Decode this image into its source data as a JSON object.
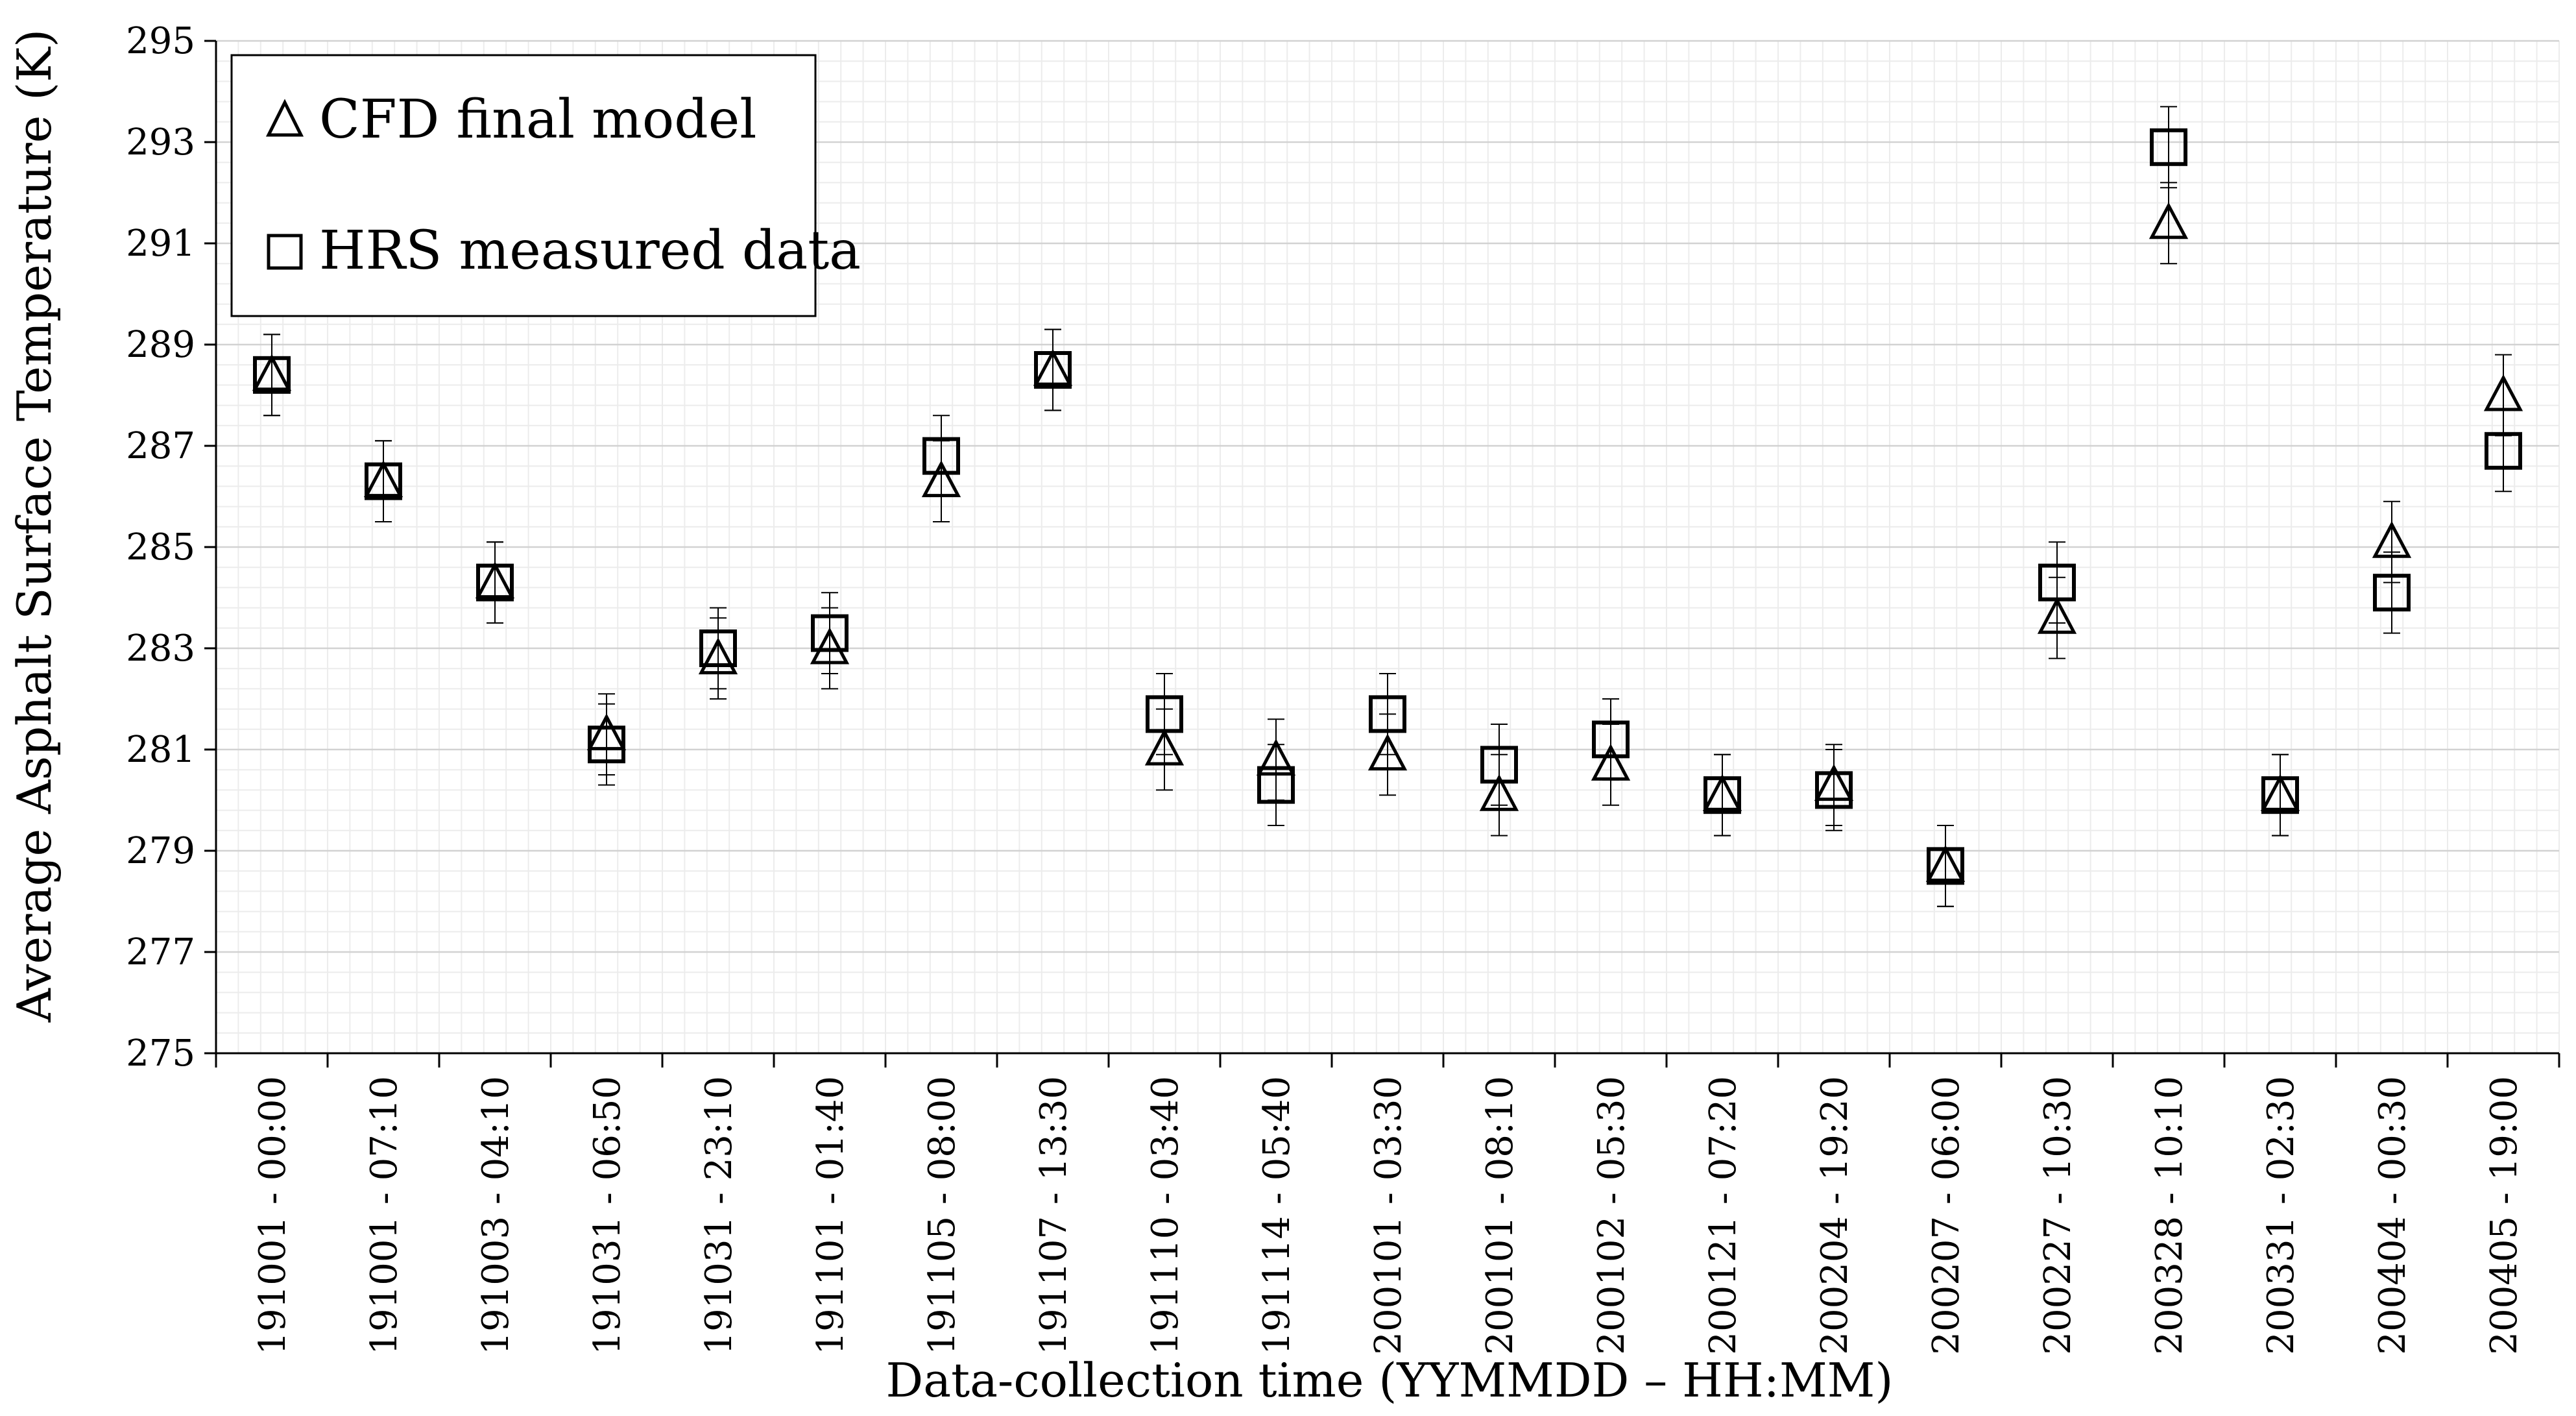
{
  "chart_data": {
    "type": "scatter",
    "title": "",
    "xlabel": "Data-collection time (YYMMDD – HH:MM)",
    "ylabel": "Average Asphalt Surface Temperature (K)",
    "ylim": [
      275,
      295
    ],
    "yticks": [
      275,
      277,
      279,
      281,
      283,
      285,
      287,
      289,
      291,
      293,
      295
    ],
    "grid": true,
    "legend_position": "top-left",
    "categories": [
      "191001 - 00:00",
      "191001 - 07:10",
      "191003 - 04:10",
      "191031 - 06:50",
      "191031 - 23:10",
      "191101 - 01:40",
      "191105 - 08:00",
      "191107 - 13:30",
      "191110 - 03:40",
      "191114 - 05:40",
      "200101 - 03:30",
      "200101 - 08:10",
      "200102 - 05:30",
      "200121 - 07:20",
      "200204 - 19:20",
      "200207 - 06:00",
      "200227 - 10:30",
      "200328 - 10:10",
      "200331 - 02:30",
      "200404 - 00:30",
      "200405 - 19:00"
    ],
    "series": [
      {
        "name": "CFD final model",
        "marker": "triangle",
        "values": [
          288.4,
          286.3,
          284.3,
          281.3,
          282.8,
          283.0,
          286.3,
          288.5,
          281.0,
          280.8,
          280.9,
          280.1,
          280.7,
          280.1,
          280.3,
          278.7,
          283.6,
          291.4,
          280.1,
          285.1,
          288.0
        ],
        "error": 0.8
      },
      {
        "name": "HRS measured data",
        "marker": "square",
        "values": [
          288.4,
          286.3,
          284.3,
          281.1,
          283.0,
          283.3,
          286.8,
          288.5,
          281.7,
          280.3,
          281.7,
          280.7,
          281.2,
          280.1,
          280.2,
          278.7,
          284.3,
          292.9,
          280.1,
          284.1,
          286.9
        ],
        "error": 0.8
      }
    ]
  }
}
